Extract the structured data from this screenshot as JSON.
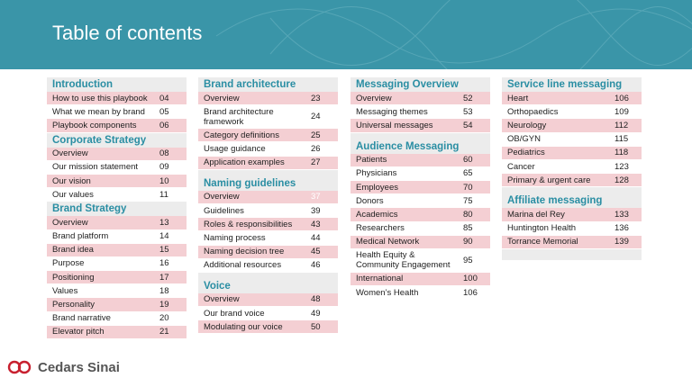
{
  "title": "Table of contents",
  "logo": {
    "text": "Cedars Sinai"
  },
  "columns": [
    {
      "sections": [
        {
          "title": "Introduction",
          "items": [
            {
              "label": "How to use this playbook",
              "page": "04"
            },
            {
              "label": "What we mean by brand",
              "page": "05"
            },
            {
              "label": "Playbook components",
              "page": "06"
            }
          ]
        },
        {
          "title": "Corporate Strategy",
          "items": [
            {
              "label": "Overview",
              "page": "08"
            },
            {
              "label": "Our mission statement",
              "page": "09"
            },
            {
              "label": "Our vision",
              "page": "10"
            },
            {
              "label": "Our values",
              "page": "11"
            }
          ]
        },
        {
          "title": "Brand Strategy",
          "items": [
            {
              "label": "Overview",
              "page": "13"
            },
            {
              "label": "Brand platform",
              "page": "14"
            },
            {
              "label": "Brand idea",
              "page": "15"
            },
            {
              "label": "Purpose",
              "page": "16"
            },
            {
              "label": "Positioning",
              "page": "17"
            },
            {
              "label": "Values",
              "page": "18"
            },
            {
              "label": "Personality",
              "page": "19"
            },
            {
              "label": "Brand narrative",
              "page": "20"
            },
            {
              "label": "Elevator pitch",
              "page": "21"
            }
          ]
        }
      ]
    },
    {
      "sections": [
        {
          "title": "Brand architecture",
          "items": [
            {
              "label": "Overview",
              "page": "23"
            },
            {
              "label": "Brand architecture framework",
              "page": "24"
            },
            {
              "label": "Category definitions",
              "page": "25"
            },
            {
              "label": "Usage guidance",
              "page": "26"
            },
            {
              "label": "Application examples",
              "page": "27"
            }
          ]
        },
        {
          "title": "Naming guidelines",
          "items": [
            {
              "label": "Overview",
              "page": "37"
            },
            {
              "label": "Guidelines",
              "page": "39"
            },
            {
              "label": "Roles & responsibilities",
              "page": "43"
            },
            {
              "label": "Naming process",
              "page": "44"
            },
            {
              "label": "Naming decision tree",
              "page": "45"
            },
            {
              "label": "Additional resources",
              "page": "46"
            }
          ]
        },
        {
          "title": "Voice",
          "items": [
            {
              "label": "Overview",
              "page": "48"
            },
            {
              "label": "Our brand voice",
              "page": "49"
            },
            {
              "label": "Modulating our voice",
              "page": "50"
            }
          ]
        }
      ]
    },
    {
      "sections": [
        {
          "title": "Messaging Overview",
          "items": [
            {
              "label": "Overview",
              "page": "52"
            },
            {
              "label": "Messaging themes",
              "page": "53"
            },
            {
              "label": "Universal messages",
              "page": "54"
            }
          ]
        },
        {
          "title": "Audience Messaging",
          "items": [
            {
              "label": "Patients",
              "page": "60"
            },
            {
              "label": "Physicians",
              "page": "65"
            },
            {
              "label": "Employees",
              "page": "70"
            },
            {
              "label": "Donors",
              "page": "75"
            },
            {
              "label": "Academics",
              "page": "80"
            },
            {
              "label": "Researchers",
              "page": "85"
            },
            {
              "label": "Medical Network",
              "page": "90"
            },
            {
              "label": "Health Equity & Community Engagement",
              "page": "95"
            },
            {
              "label": "International",
              "page": "100"
            },
            {
              "label": "Women’s Health",
              "page": "106"
            }
          ]
        }
      ]
    },
    {
      "sections": [
        {
          "title": "Service line messaging",
          "items": [
            {
              "label": "Heart",
              "page": "106"
            },
            {
              "label": "Orthopaedics",
              "page": "109"
            },
            {
              "label": "Neurology",
              "page": "112"
            },
            {
              "label": "OB/GYN",
              "page": "115"
            },
            {
              "label": "Pediatrics",
              "page": "118"
            },
            {
              "label": "Cancer",
              "page": "123"
            },
            {
              "label": "Primary & urgent care",
              "page": "128"
            }
          ]
        },
        {
          "title": "Affiliate messaging",
          "items": [
            {
              "label": "Marina del Rey",
              "page": "133"
            },
            {
              "label": "Huntington Health",
              "page": "136"
            },
            {
              "label": "Torrance Memorial",
              "page": "139"
            }
          ]
        }
      ]
    }
  ]
}
